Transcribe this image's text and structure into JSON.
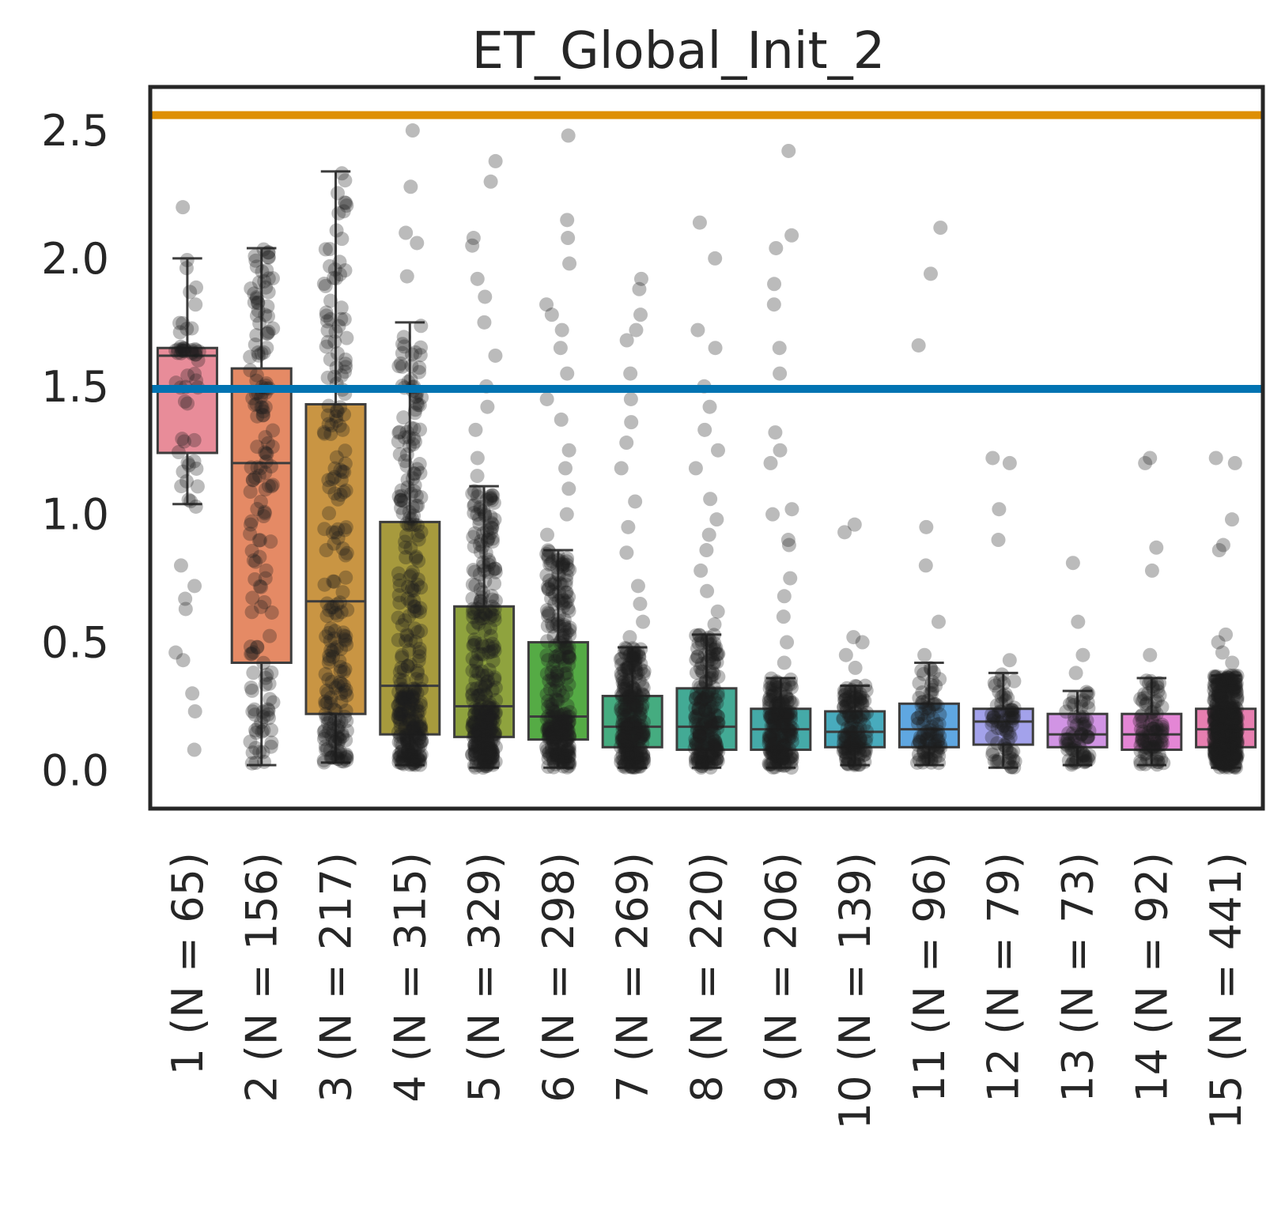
{
  "chart_data": {
    "type": "box",
    "title": "ET_Global_Init_2",
    "xlabel": "",
    "ylabel": "",
    "ylim": [
      -0.15,
      2.67
    ],
    "yticks": [
      "0.0",
      "0.5",
      "1.0",
      "1.5",
      "2.0",
      "2.5"
    ],
    "grid": false,
    "reference_lines": [
      {
        "value": 2.56,
        "color": "#de8f05"
      },
      {
        "value": 1.49,
        "color": "#0173b2"
      }
    ],
    "categories": [
      "1 (N = 65)",
      "2 (N = 156)",
      "3 (N = 217)",
      "4 (N = 315)",
      "5 (N = 329)",
      "6 (N = 298)",
      "7 (N = 269)",
      "8 (N = 220)",
      "9 (N = 206)",
      "10 (N = 139)",
      "11 (N = 96)",
      "12 (N = 79)",
      "13 (N = 73)",
      "14 (N = 92)",
      "15 (N = 441)"
    ],
    "counts": [
      65,
      156,
      217,
      315,
      329,
      298,
      269,
      220,
      206,
      139,
      96,
      79,
      73,
      92,
      441
    ],
    "box_colors": [
      "#e88c99",
      "#e58a65",
      "#c99543",
      "#a79a3d",
      "#8fa33e",
      "#55ab45",
      "#45ac80",
      "#43aa95",
      "#45aaa8",
      "#48abbd",
      "#5fa7e1",
      "#a3a2eb",
      "#d194e4",
      "#e486d5",
      "#e77fb0"
    ],
    "boxes": [
      {
        "whislo": 1.04,
        "q1": 1.24,
        "med": 1.62,
        "q3": 1.65,
        "whishi": 2.0,
        "fliers": [
          2.2,
          1.03,
          0.8,
          0.72,
          0.67,
          0.63,
          0.46,
          0.43,
          0.3,
          0.23,
          0.08
        ]
      },
      {
        "whislo": 0.02,
        "q1": 0.42,
        "med": 1.2,
        "q3": 1.57,
        "whishi": 2.04,
        "fliers": []
      },
      {
        "whislo": 0.03,
        "q1": 0.22,
        "med": 0.66,
        "q3": 1.43,
        "whishi": 2.34,
        "fliers": []
      },
      {
        "whislo": 0.02,
        "q1": 0.14,
        "med": 0.33,
        "q3": 0.97,
        "whishi": 1.75,
        "fliers": [
          2.5,
          2.28,
          2.1,
          2.06,
          1.93
        ]
      },
      {
        "whislo": 0.01,
        "q1": 0.13,
        "med": 0.25,
        "q3": 0.64,
        "whishi": 1.11,
        "fliers": [
          2.38,
          2.3,
          2.08,
          2.05,
          1.92,
          1.85,
          1.75,
          1.62,
          1.5,
          1.42,
          1.33,
          1.22,
          1.15
        ]
      },
      {
        "whislo": 0.01,
        "q1": 0.12,
        "med": 0.21,
        "q3": 0.5,
        "whishi": 0.86,
        "fliers": [
          2.48,
          2.15,
          2.08,
          1.98,
          1.82,
          1.78,
          1.72,
          1.65,
          1.55,
          1.45,
          1.37,
          1.25,
          1.18,
          1.1,
          1.0,
          0.92
        ]
      },
      {
        "whislo": 0.01,
        "q1": 0.09,
        "med": 0.17,
        "q3": 0.29,
        "whishi": 0.48,
        "fliers": [
          1.92,
          1.88,
          1.78,
          1.72,
          1.68,
          1.55,
          1.45,
          1.36,
          1.28,
          1.18,
          1.05,
          0.95,
          0.85,
          0.72,
          0.65,
          0.58,
          0.52
        ]
      },
      {
        "whislo": 0.01,
        "q1": 0.08,
        "med": 0.17,
        "q3": 0.32,
        "whishi": 0.53,
        "fliers": [
          2.14,
          2.0,
          1.72,
          1.65,
          1.5,
          1.42,
          1.33,
          1.25,
          1.18,
          1.06,
          0.98,
          0.92,
          0.86,
          0.78,
          0.7,
          0.62,
          0.57
        ]
      },
      {
        "whislo": 0.01,
        "q1": 0.08,
        "med": 0.16,
        "q3": 0.24,
        "whishi": 0.36,
        "fliers": [
          2.42,
          2.09,
          2.04,
          1.9,
          1.82,
          1.65,
          1.55,
          1.32,
          1.25,
          1.2,
          1.02,
          1.0,
          0.9,
          0.88,
          0.75,
          0.68,
          0.6,
          0.5,
          0.42
        ]
      },
      {
        "whislo": 0.02,
        "q1": 0.09,
        "med": 0.15,
        "q3": 0.23,
        "whishi": 0.33,
        "fliers": [
          0.96,
          0.93,
          0.52,
          0.5,
          0.45,
          0.4
        ]
      },
      {
        "whislo": 0.02,
        "q1": 0.09,
        "med": 0.16,
        "q3": 0.26,
        "whishi": 0.42,
        "fliers": [
          2.12,
          1.94,
          1.66,
          0.95,
          0.8,
          0.58,
          0.45
        ]
      },
      {
        "whislo": 0.01,
        "q1": 0.1,
        "med": 0.19,
        "q3": 0.24,
        "whishi": 0.38,
        "fliers": [
          1.22,
          1.2,
          1.02,
          0.9,
          0.43
        ]
      },
      {
        "whislo": 0.02,
        "q1": 0.09,
        "med": 0.14,
        "q3": 0.22,
        "whishi": 0.31,
        "fliers": [
          0.81,
          0.58,
          0.45,
          0.38
        ]
      },
      {
        "whislo": 0.02,
        "q1": 0.08,
        "med": 0.14,
        "q3": 0.22,
        "whishi": 0.36,
        "fliers": [
          1.22,
          1.2,
          0.87,
          0.78,
          0.45
        ]
      },
      {
        "whislo": 0.01,
        "q1": 0.09,
        "med": 0.16,
        "q3": 0.24,
        "whishi": 0.37,
        "fliers": [
          1.22,
          1.2,
          0.98,
          0.88,
          0.86,
          0.53,
          0.5,
          0.46,
          0.42
        ]
      }
    ]
  }
}
